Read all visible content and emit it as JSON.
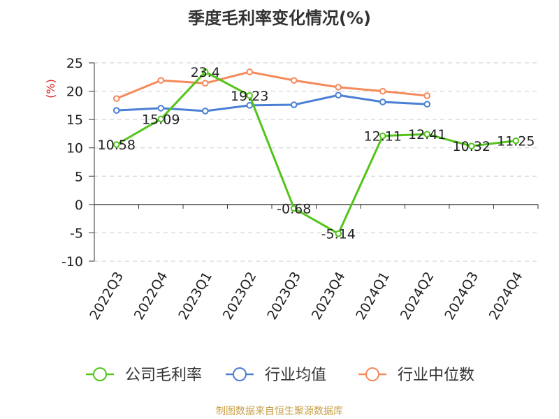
{
  "chart_data": {
    "type": "line",
    "title": "季度毛利率变化情况(%)",
    "ylabel": "(%)",
    "categories": [
      "2022Q3",
      "2022Q4",
      "2023Q1",
      "2023Q2",
      "2023Q3",
      "2023Q4",
      "2024Q1",
      "2024Q2",
      "2024Q3",
      "2024Q4"
    ],
    "ylim": [
      -10,
      25
    ],
    "yticks": [
      25,
      20,
      15,
      10,
      5,
      0,
      -5,
      -10
    ],
    "grid": true,
    "legend_position": "bottom",
    "series": [
      {
        "name": "公司毛利率",
        "color": "#52c41a",
        "values": [
          10.58,
          15.09,
          23.4,
          19.23,
          -0.68,
          -5.14,
          12.11,
          12.41,
          10.32,
          11.25
        ],
        "labels": [
          "10.58",
          "15.09",
          "23.4",
          "19.23",
          "-0.68",
          "-5.14",
          "12.11",
          "12.41",
          "10.32",
          "11.25"
        ]
      },
      {
        "name": "行业均值",
        "color": "#4a7fd4",
        "values": [
          16.6,
          17.0,
          16.5,
          17.5,
          17.6,
          19.3,
          18.1,
          17.7,
          null,
          null
        ]
      },
      {
        "name": "行业中位数",
        "color": "#f5895a",
        "values": [
          18.7,
          21.9,
          21.4,
          23.4,
          21.9,
          20.7,
          20.0,
          19.2,
          null,
          null
        ]
      }
    ]
  },
  "footer": "制图数据来自恒生聚源数据库"
}
